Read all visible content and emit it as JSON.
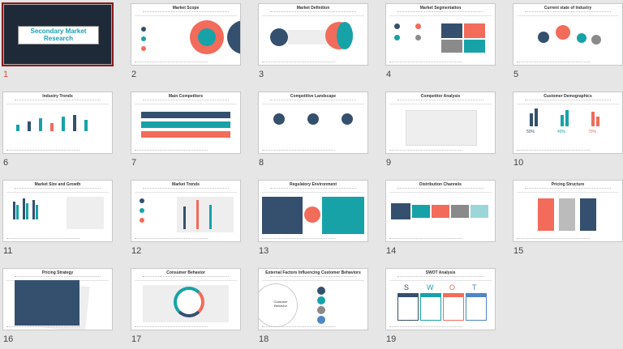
{
  "slides": [
    {
      "number": "1",
      "title": "Secondary Market Research",
      "selected": true
    },
    {
      "number": "2",
      "title": "Market Scope"
    },
    {
      "number": "3",
      "title": "Market Definition"
    },
    {
      "number": "4",
      "title": "Market Segmentation"
    },
    {
      "number": "5",
      "title": "Current state of Industry"
    },
    {
      "number": "6",
      "title": "Industry Trends"
    },
    {
      "number": "7",
      "title": "Main Competitors"
    },
    {
      "number": "8",
      "title": "Competitive Landscape"
    },
    {
      "number": "9",
      "title": "Competitor Analysis"
    },
    {
      "number": "10",
      "title": "Customer Demographics"
    },
    {
      "number": "11",
      "title": "Market Size and Growth"
    },
    {
      "number": "12",
      "title": "Market Trends"
    },
    {
      "number": "13",
      "title": "Regulatory Environment"
    },
    {
      "number": "14",
      "title": "Distribution Channels"
    },
    {
      "number": "15",
      "title": "Pricing Structure"
    },
    {
      "number": "16",
      "title": "Pricing Strategy"
    },
    {
      "number": "17",
      "title": "Consumer Behavior"
    },
    {
      "number": "18",
      "title": "External Factors Influencing Customer Behaviors"
    },
    {
      "number": "19",
      "title": "SWOT Analysis"
    }
  ],
  "slide10_labels": [
    "50%",
    "40%",
    "70%"
  ],
  "slide18_label": "Customer Behavior",
  "slide19_letters": [
    "S",
    "W",
    "O",
    "T"
  ],
  "colors": {
    "navy": "#34506e",
    "teal": "#17a2a8",
    "coral": "#f26b5b",
    "selected_border": "#8b1a1a"
  }
}
